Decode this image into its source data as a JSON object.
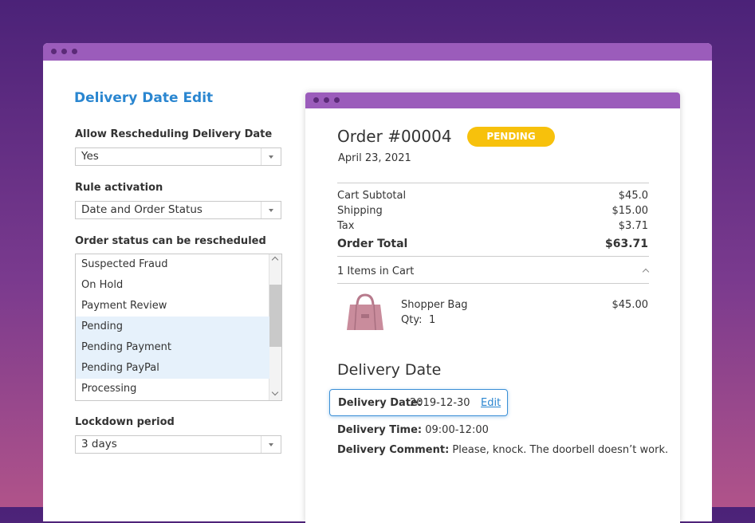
{
  "settings": {
    "title": "Delivery Date Edit",
    "allow_rescheduling": {
      "label": "Allow Rescheduling Delivery Date",
      "value": "Yes"
    },
    "rule_activation": {
      "label": "Rule activation",
      "value": "Date and Order Status"
    },
    "order_status": {
      "label": "Order status can be rescheduled",
      "options": [
        {
          "label": "Suspected Fraud",
          "selected": false
        },
        {
          "label": "On Hold",
          "selected": false
        },
        {
          "label": "Payment Review",
          "selected": false
        },
        {
          "label": "Pending",
          "selected": true
        },
        {
          "label": "Pending Payment",
          "selected": true
        },
        {
          "label": "Pending PayPal",
          "selected": true
        },
        {
          "label": "Processing",
          "selected": false
        }
      ]
    },
    "lockdown": {
      "label": "Lockdown period",
      "value": "3 days"
    }
  },
  "order": {
    "number": "Order #00004",
    "status": "PENDING",
    "date": "April 23, 2021",
    "totals": [
      {
        "label": "Cart Subtotal",
        "amount": "$45.0"
      },
      {
        "label": "Shipping",
        "amount": "$15.00"
      },
      {
        "label": "Tax",
        "amount": "$3.71"
      },
      {
        "label": "Order Total",
        "amount": "$63.71"
      }
    ],
    "cart_count": "1 Items in Cart",
    "items": [
      {
        "name": "Shopper Bag",
        "qty_label": "Qty:",
        "qty": "1",
        "price": "$45.00"
      }
    ]
  },
  "delivery": {
    "heading": "Delivery Date",
    "date_label": "Delivery Date:",
    "date": "2019-12-30",
    "edit": "Edit",
    "time_label": "Delivery Time:",
    "time": "09:00-12:00",
    "comment_label": "Delivery Comment:",
    "comment": "Please, knock. The doorbell doesn’t work."
  }
}
